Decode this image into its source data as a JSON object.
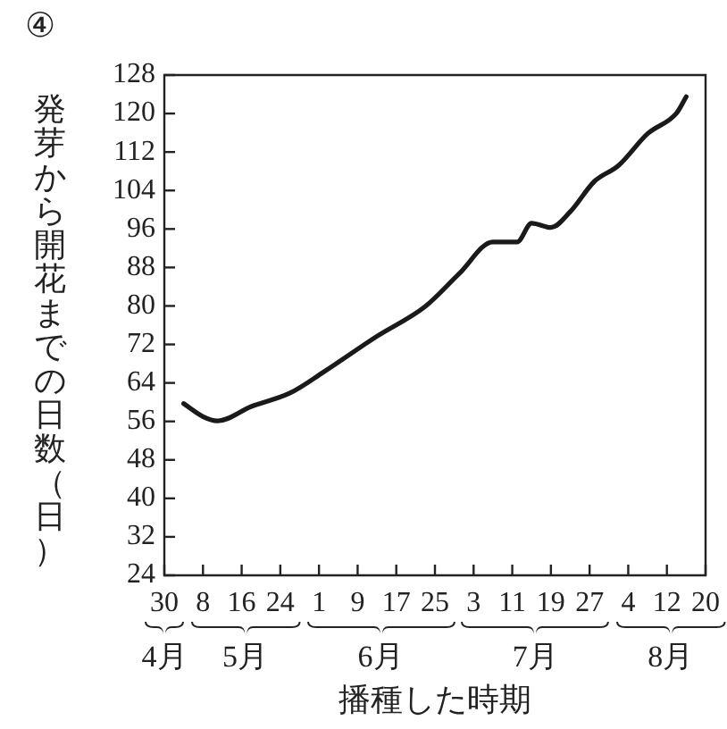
{
  "chart_data": {
    "type": "line",
    "title": "④",
    "xlabel": "播種した時期",
    "ylabel": "発芽から開花までの日数（日）",
    "x": [
      "--05-04",
      "--05-08",
      "--05-11",
      "--05-18",
      "--05-26",
      "--06-02",
      "--06-13",
      "--06-23",
      "--06-30",
      "--07-07",
      "--07-12",
      "--07-15",
      "--07-19",
      "--07-23",
      "--07-28",
      "--08-02",
      "--08-08",
      "--08-14",
      "--08-16"
    ],
    "series": [
      {
        "color": "#1a1a1a",
        "values": [
          59.7,
          57.0,
          56.1,
          59.1,
          61.9,
          66.3,
          73.7,
          79.9,
          86.7,
          93.3,
          93.3,
          97.2,
          96.3,
          99.6,
          105.9,
          109.2,
          115.8,
          120.1,
          123.5
        ]
      }
    ],
    "xlim": [
      "--04-30",
      "--08-20"
    ],
    "xticks": [
      {
        "value": "--04-30",
        "label": "30"
      },
      {
        "value": "--05-08",
        "label": "8"
      },
      {
        "value": "--05-16",
        "label": "16"
      },
      {
        "value": "--05-24",
        "label": "24"
      },
      {
        "value": "--06-01",
        "label": "1"
      },
      {
        "value": "--06-09",
        "label": "9"
      },
      {
        "value": "--06-17",
        "label": "17"
      },
      {
        "value": "--06-25",
        "label": "25"
      },
      {
        "value": "--07-03",
        "label": "3"
      },
      {
        "value": "--07-11",
        "label": "11"
      },
      {
        "value": "--07-19",
        "label": "19"
      },
      {
        "value": "--07-27",
        "label": "27"
      },
      {
        "value": "--08-04",
        "label": "4"
      },
      {
        "value": "--08-12",
        "label": "12"
      },
      {
        "value": "--08-20",
        "label": "20"
      }
    ],
    "ylim": [
      24,
      128
    ],
    "yticks": [
      24,
      32,
      40,
      48,
      56,
      64,
      72,
      80,
      88,
      96,
      104,
      112,
      120,
      128
    ],
    "annotations": [
      "4月",
      "5月",
      "6月",
      "7月",
      "8月"
    ],
    "grid": false,
    "legend": false,
    "marker": "none",
    "line_style": "solid"
  }
}
